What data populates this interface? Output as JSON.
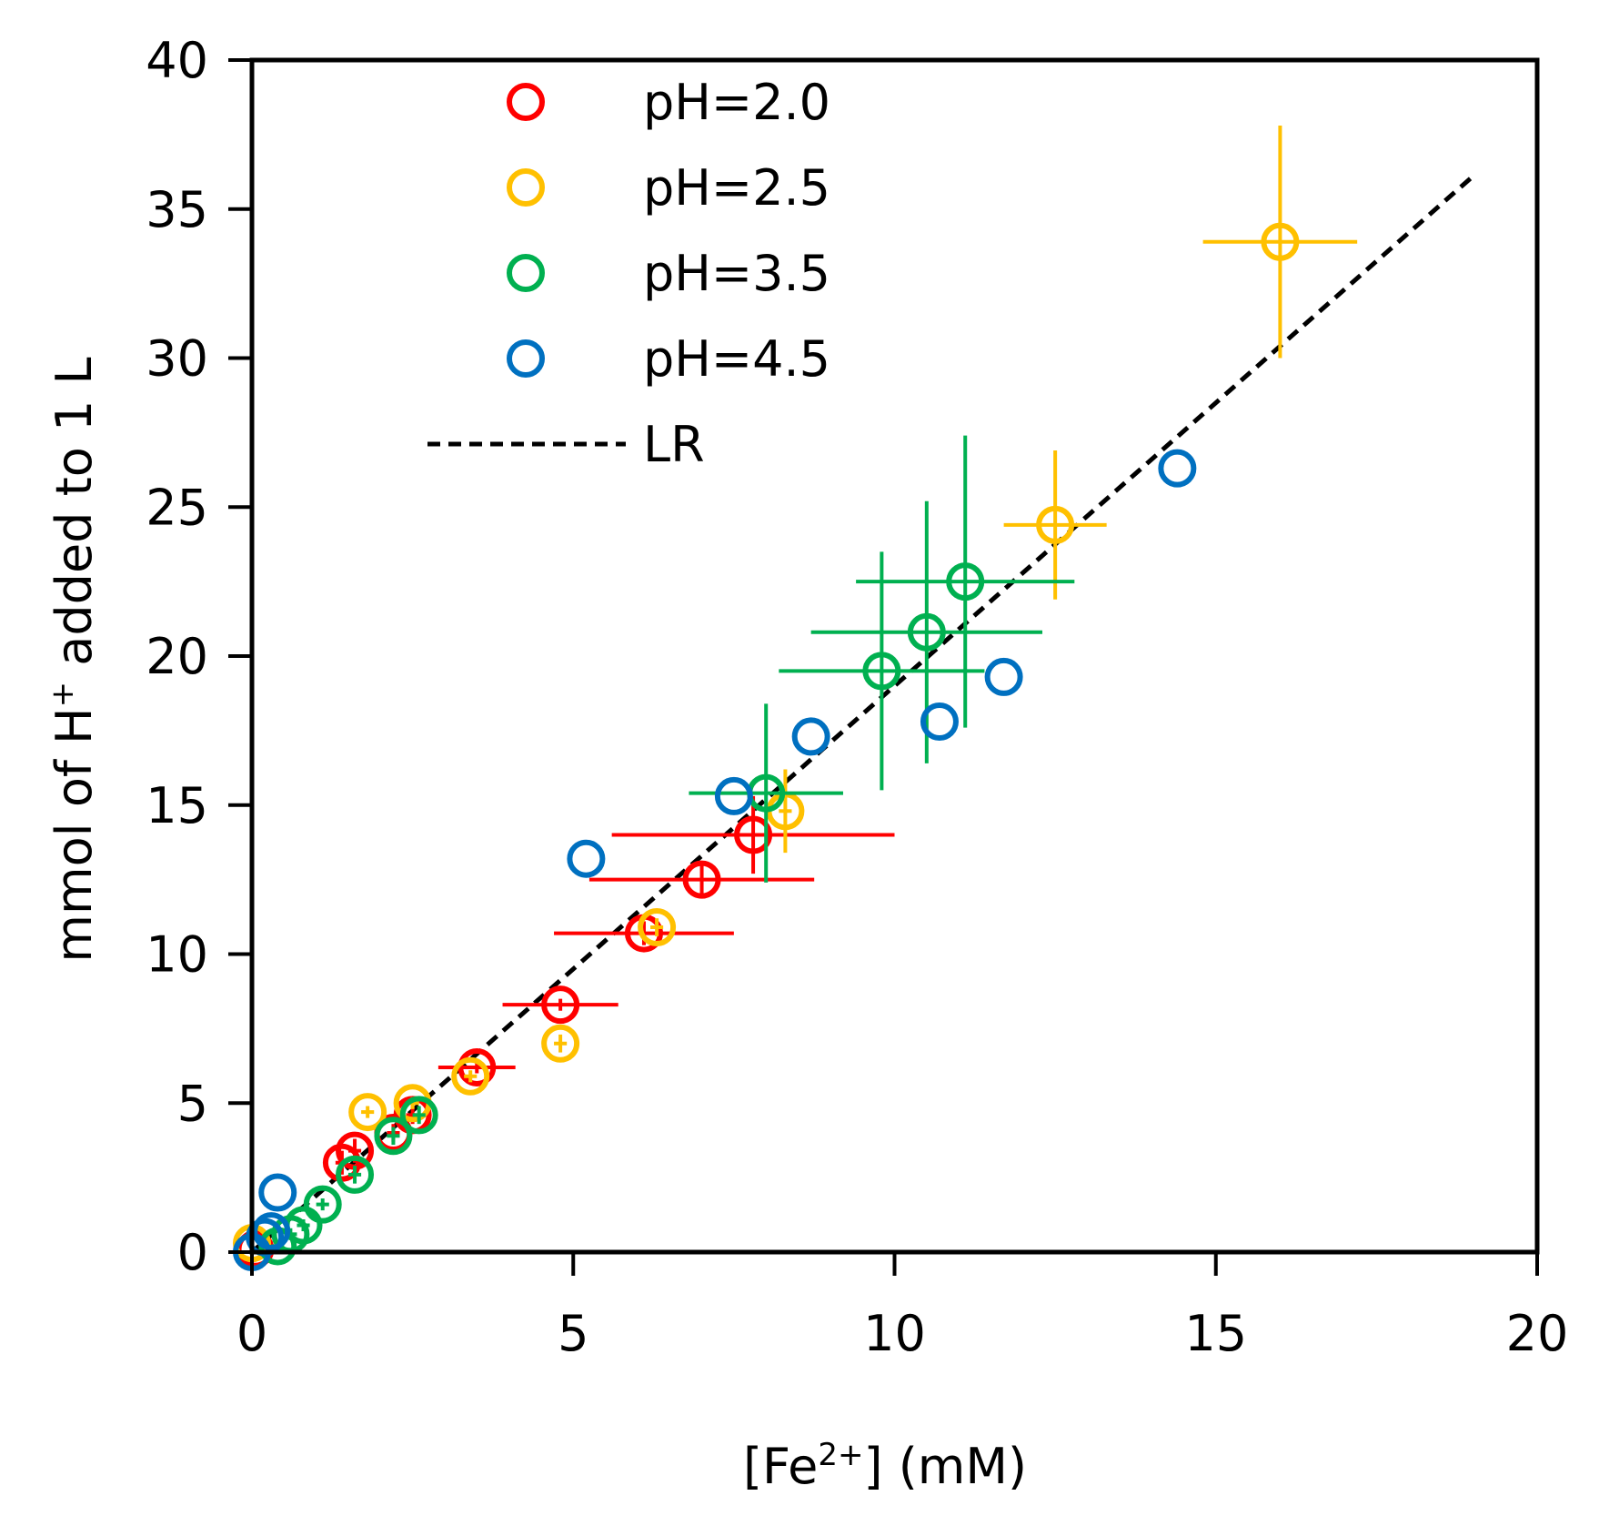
{
  "chart_data": {
    "type": "scatter",
    "title": "",
    "xlabel": {
      "prefix": "[Fe",
      "sup": "2+",
      "suffix": "] (mM)"
    },
    "ylabel": {
      "prefix": "mmol of H",
      "sup": "+",
      "suffix": " added  to 1 L"
    },
    "xlim": [
      0,
      20
    ],
    "ylim": [
      0,
      40
    ],
    "xticks": [
      "0",
      "5",
      "10",
      "15",
      "20"
    ],
    "yticks": [
      "0",
      "5",
      "10",
      "15",
      "20",
      "25",
      "30",
      "35",
      "40"
    ],
    "grid": false,
    "legend_position": "top-left",
    "series": [
      {
        "name": "pH=2.0",
        "color": "#ff0000",
        "marker": "open-circle",
        "points": [
          {
            "x": 0.05,
            "y": 0.1,
            "xerr": 0.0,
            "yerr": 0.0
          },
          {
            "x": 1.4,
            "y": 3.0,
            "xerr": 0.1,
            "yerr": 0.4
          },
          {
            "x": 1.6,
            "y": 3.4,
            "xerr": 0.1,
            "yerr": 0.4
          },
          {
            "x": 2.2,
            "y": 4.0,
            "xerr": 0.1,
            "yerr": 0.3
          },
          {
            "x": 2.5,
            "y": 4.6,
            "xerr": 0.1,
            "yerr": 0.3
          },
          {
            "x": 3.5,
            "y": 6.2,
            "xerr": 0.6,
            "yerr": 0.2
          },
          {
            "x": 4.8,
            "y": 8.3,
            "xerr": 0.9,
            "yerr": 0.2
          },
          {
            "x": 6.1,
            "y": 10.7,
            "xerr": 1.4,
            "yerr": 0.4
          },
          {
            "x": 7.0,
            "y": 12.5,
            "xerr": 1.75,
            "yerr": 0.6
          },
          {
            "x": 7.8,
            "y": 14.0,
            "xerr": 2.2,
            "yerr": 1.3
          }
        ]
      },
      {
        "name": "pH=2.5",
        "color": "#ffc000",
        "marker": "open-circle",
        "points": [
          {
            "x": 0.0,
            "y": 0.3,
            "xerr": 0.0,
            "yerr": 0.0
          },
          {
            "x": 1.8,
            "y": 4.7,
            "xerr": 0.1,
            "yerr": 0.2
          },
          {
            "x": 2.5,
            "y": 5.0,
            "xerr": 0.1,
            "yerr": 0.2
          },
          {
            "x": 3.4,
            "y": 5.9,
            "xerr": 0.1,
            "yerr": 0.2
          },
          {
            "x": 4.8,
            "y": 7.0,
            "xerr": 0.1,
            "yerr": 0.3
          },
          {
            "x": 6.3,
            "y": 10.9,
            "xerr": 0.1,
            "yerr": 0.3
          },
          {
            "x": 8.3,
            "y": 14.8,
            "xerr": 0.1,
            "yerr": 1.4
          },
          {
            "x": 12.5,
            "y": 24.4,
            "xerr": 0.8,
            "yerr": 2.5
          },
          {
            "x": 16.0,
            "y": 33.9,
            "xerr": 1.2,
            "yerr": 3.9
          }
        ]
      },
      {
        "name": "pH=3.5",
        "color": "#00b050",
        "marker": "open-circle",
        "points": [
          {
            "x": 0.4,
            "y": 0.2,
            "xerr": 0.1,
            "yerr": 0.2
          },
          {
            "x": 0.6,
            "y": 0.6,
            "xerr": 0.1,
            "yerr": 0.2
          },
          {
            "x": 0.8,
            "y": 0.9,
            "xerr": 0.1,
            "yerr": 0.2
          },
          {
            "x": 1.1,
            "y": 1.6,
            "xerr": 0.1,
            "yerr": 0.2
          },
          {
            "x": 1.6,
            "y": 2.6,
            "xerr": 0.1,
            "yerr": 0.3
          },
          {
            "x": 2.2,
            "y": 3.9,
            "xerr": 0.1,
            "yerr": 0.3
          },
          {
            "x": 2.6,
            "y": 4.6,
            "xerr": 0.1,
            "yerr": 0.3
          },
          {
            "x": 8.0,
            "y": 15.4,
            "xerr": 1.2,
            "yerr": 3.0
          },
          {
            "x": 9.8,
            "y": 19.5,
            "xerr": 1.6,
            "yerr": 4.0
          },
          {
            "x": 10.5,
            "y": 20.8,
            "xerr": 1.8,
            "yerr": 4.4
          },
          {
            "x": 11.1,
            "y": 22.5,
            "xerr": 1.7,
            "yerr": 4.9
          }
        ]
      },
      {
        "name": "pH=4.5",
        "color": "#0070c0",
        "marker": "open-circle",
        "points": [
          {
            "x": 0.0,
            "y": 0.0,
            "xerr": 0.0,
            "yerr": 0.0
          },
          {
            "x": 0.2,
            "y": 0.5,
            "xerr": 0.0,
            "yerr": 0.0
          },
          {
            "x": 0.3,
            "y": 0.7,
            "xerr": 0.0,
            "yerr": 0.0
          },
          {
            "x": 0.4,
            "y": 2.0,
            "xerr": 0.0,
            "yerr": 0.0
          },
          {
            "x": 5.2,
            "y": 13.2,
            "xerr": 0.0,
            "yerr": 0.0
          },
          {
            "x": 7.5,
            "y": 15.3,
            "xerr": 0.0,
            "yerr": 0.0
          },
          {
            "x": 8.7,
            "y": 17.3,
            "xerr": 0.0,
            "yerr": 0.0
          },
          {
            "x": 10.7,
            "y": 17.8,
            "xerr": 0.0,
            "yerr": 0.0
          },
          {
            "x": 11.7,
            "y": 19.3,
            "xerr": 0.0,
            "yerr": 0.0
          },
          {
            "x": 14.4,
            "y": 26.3,
            "xerr": 0.0,
            "yerr": 0.0
          }
        ]
      },
      {
        "name": "LR",
        "color": "#000000",
        "type": "line",
        "dash": true,
        "x": [
          0,
          19
        ],
        "y": [
          0,
          36.1
        ]
      }
    ]
  }
}
